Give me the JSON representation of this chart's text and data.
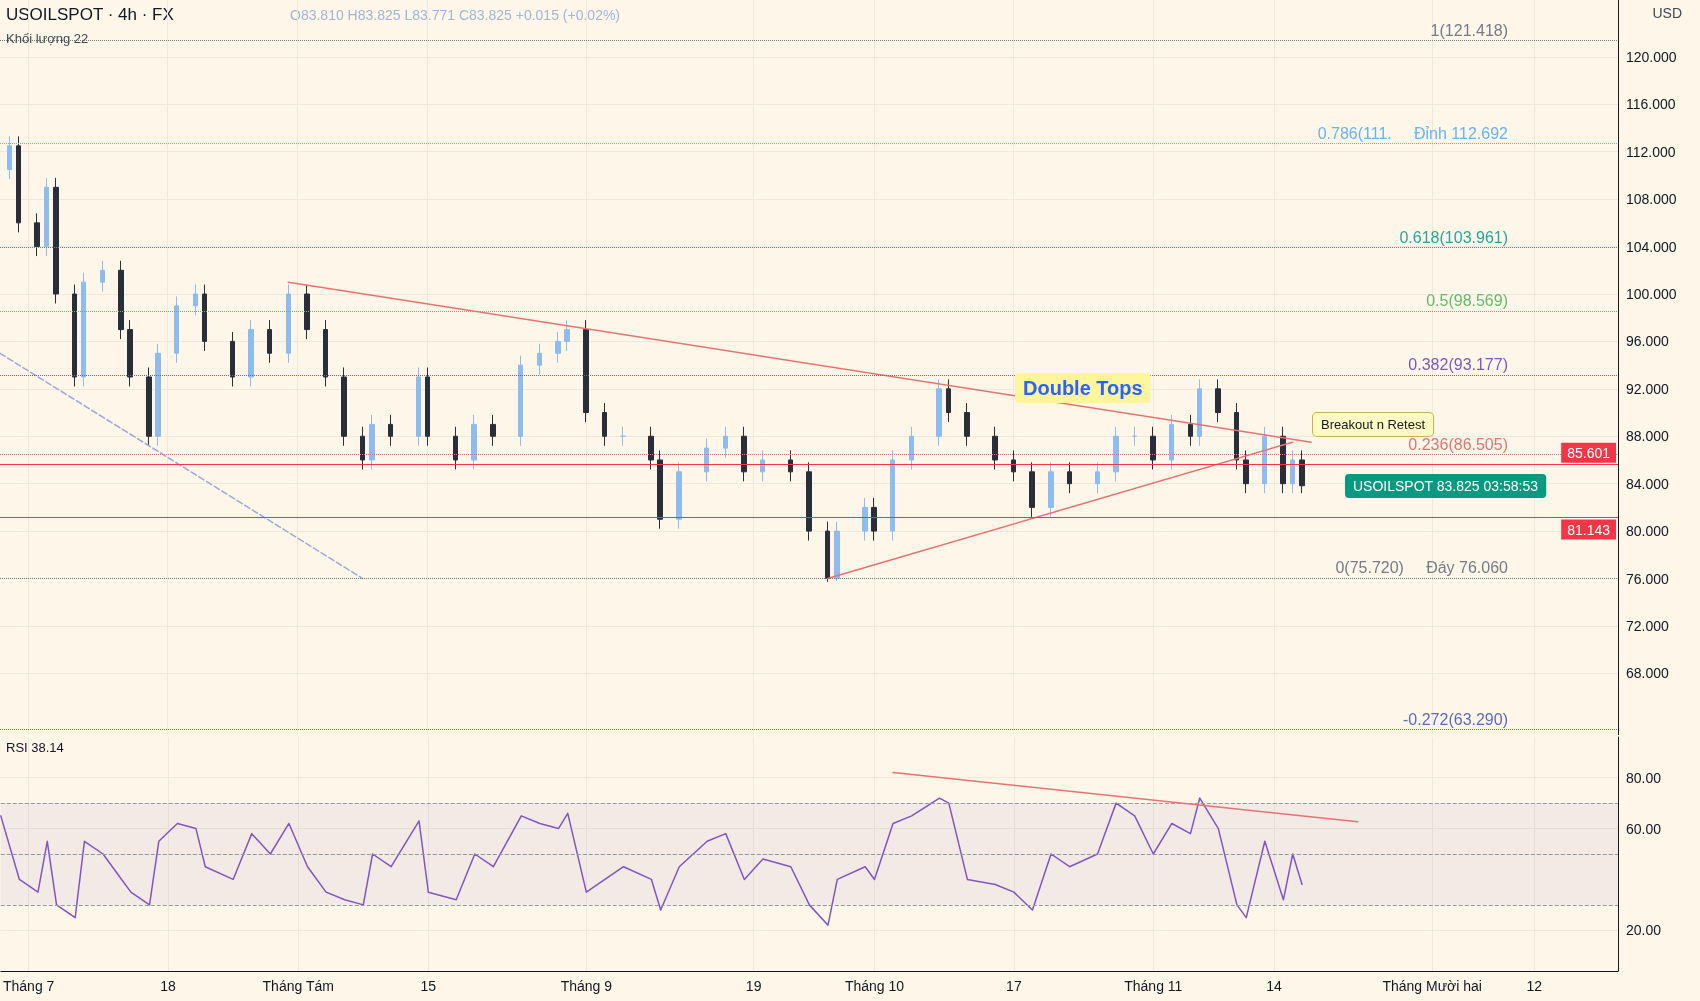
{
  "chart_data": [
    {
      "type": "candlestick",
      "title": "USOILSPOT · 4h · FX",
      "subtitle": "O83.810 H83.825 L83.771 C83.825 +0.015 (+0.02%)",
      "ylabel": "USD",
      "x": [
        "--07-01",
        "--07-02",
        "--07-04",
        "--07-05",
        "--07-06",
        "--07-08",
        "--07-09",
        "--07-11",
        "--07-13",
        "--07-14",
        "--07-16",
        "--07-17",
        "--07-19",
        "--07-21",
        "--07-22",
        "--07-25",
        "--07-27",
        "--07-29",
        "--07-31",
        "--08-02",
        "--08-04",
        "--08-06",
        "--08-08",
        "--08-09",
        "--08-11",
        "--08-14",
        "--08-15",
        "--08-18",
        "--08-20",
        "--08-22",
        "--08-25",
        "--08-27",
        "--08-29",
        "--08-30",
        "--09-01",
        "--09-03",
        "--09-05",
        "--09-08",
        "--09-09",
        "--09-11",
        "--09-14",
        "--09-16",
        "--09-18",
        "--09-20",
        "--09-23",
        "--09-25",
        "--09-27",
        "--09-28",
        "--10-01",
        "--10-02",
        "--10-04",
        "--10-06",
        "--10-09",
        "--10-10",
        "--10-12",
        "--10-15",
        "--10-17",
        "--10-19",
        "--10-21",
        "--10-23",
        "--10-26",
        "--10-28",
        "--10-30",
        "--11-01",
        "--11-03",
        "--11-05",
        "--11-06",
        "--11-08",
        "--11-10",
        "--11-11",
        "--11-13",
        "--11-15",
        "--11-16",
        "--11-17"
      ],
      "series": [
        {
          "colors": [
            "#8fbcf0",
            "#2a2e39",
            "#2a2e39",
            "#8fbcf0",
            "#2a2e39",
            "#2a2e39",
            "#8fbcf0",
            "#8fbcf0",
            "#2a2e39",
            "#2a2e39",
            "#2a2e39",
            "#8fbcf0",
            "#8fbcf0",
            "#8fbcf0",
            "#2a2e39",
            "#2a2e39",
            "#8fbcf0",
            "#2a2e39",
            "#8fbcf0",
            "#2a2e39",
            "#2a2e39",
            "#2a2e39",
            "#2a2e39",
            "#8fbcf0",
            "#2a2e39",
            "#8fbcf0",
            "#2a2e39",
            "#2a2e39",
            "#8fbcf0",
            "#2a2e39",
            "#8fbcf0",
            "#8fbcf0",
            "#8fbcf0",
            "#8fbcf0",
            "#2a2e39",
            "#2a2e39",
            "#8fbcf0",
            "#2a2e39",
            "#2a2e39",
            "#8fbcf0",
            "#8fbcf0",
            "#8fbcf0",
            "#2a2e39",
            "#8fbcf0",
            "#2a2e39",
            "#2a2e39",
            "#2a2e39",
            "#8fbcf0",
            "#8fbcf0",
            "#2a2e39",
            "#8fbcf0",
            "#8fbcf0",
            "#8fbcf0",
            "#2a2e39",
            "#2a2e39",
            "#2a2e39",
            "#2a2e39",
            "#2a2e39",
            "#8fbcf0",
            "#2a2e39",
            "#8fbcf0",
            "#8fbcf0",
            "#8fbcf0",
            "#2a2e39",
            "#8fbcf0",
            "#2a2e39",
            "#8fbcf0",
            "#2a2e39",
            "#2a2e39",
            "#2a2e39",
            "#8fbcf0",
            "#2a2e39",
            "#8fbcf0",
            "#2a2e39"
          ],
          "ohlc": [
            [
              110.5,
              113.3,
              109.7,
              112.5
            ],
            [
              112.5,
              113.3,
              105.2,
              106
            ],
            [
              106,
              106.8,
              103.2,
              104
            ],
            [
              104,
              109.8,
              103.2,
              109
            ],
            [
              109,
              109.8,
              99.2,
              100
            ],
            [
              100,
              100.8,
              92.2,
              93
            ],
            [
              93,
              101.8,
              92.2,
              101
            ],
            [
              101,
              102.8,
              100.2,
              102
            ],
            [
              102,
              102.8,
              96.2,
              97
            ],
            [
              97,
              97.8,
              92.2,
              93
            ],
            [
              93,
              93.8,
              87.2,
              88
            ],
            [
              88,
              95.8,
              87.2,
              95
            ],
            [
              95,
              99.8,
              94.2,
              99
            ],
            [
              99,
              100.8,
              98.2,
              100
            ],
            [
              100,
              100.8,
              95.2,
              96
            ],
            [
              96,
              96.8,
              92.2,
              93
            ],
            [
              93,
              97.8,
              92.2,
              97
            ],
            [
              97,
              97.8,
              94.2,
              95
            ],
            [
              95,
              100.8,
              94.2,
              100
            ],
            [
              100,
              100.8,
              96.2,
              97
            ],
            [
              97,
              97.8,
              92.2,
              93
            ],
            [
              93,
              93.8,
              87.2,
              88
            ],
            [
              88,
              88.8,
              85.2,
              86
            ],
            [
              86,
              89.8,
              85.2,
              89
            ],
            [
              89,
              89.8,
              87.2,
              88
            ],
            [
              88,
              93.8,
              87.2,
              93
            ],
            [
              93,
              93.8,
              87.2,
              88
            ],
            [
              88,
              88.8,
              85.2,
              86
            ],
            [
              86,
              89.8,
              85.2,
              89
            ],
            [
              89,
              89.8,
              87.2,
              88
            ],
            [
              88,
              94.8,
              87.2,
              94
            ],
            [
              94,
              95.8,
              93.2,
              95
            ],
            [
              95,
              96.8,
              94.2,
              96
            ],
            [
              96,
              97.8,
              95.2,
              97
            ],
            [
              97,
              97.8,
              89.2,
              90
            ],
            [
              90,
              90.8,
              87.2,
              88
            ],
            [
              88,
              88.8,
              87.2,
              88
            ],
            [
              88,
              88.8,
              85.2,
              86
            ],
            [
              86,
              86.8,
              80.2,
              81
            ],
            [
              81,
              85.8,
              80.2,
              85
            ],
            [
              85,
              87.8,
              84.2,
              87
            ],
            [
              87,
              88.8,
              86.2,
              88
            ],
            [
              88,
              88.8,
              84.2,
              85
            ],
            [
              85,
              86.8,
              84.2,
              86
            ],
            [
              86,
              86.8,
              84.2,
              85
            ],
            [
              85,
              85.8,
              79.2,
              80
            ],
            [
              80,
              80.8,
              75.72,
              76
            ],
            [
              76,
              80.8,
              75.8,
              80
            ],
            [
              80,
              82.8,
              79.2,
              82
            ],
            [
              82,
              82.8,
              79.2,
              80
            ],
            [
              80,
              86.8,
              79.2,
              86
            ],
            [
              86,
              88.8,
              85.2,
              88
            ],
            [
              88,
              92.8,
              87.2,
              92
            ],
            [
              92,
              92.8,
              89.2,
              90
            ],
            [
              90,
              90.8,
              87.2,
              88
            ],
            [
              88,
              88.8,
              85.2,
              86
            ],
            [
              86,
              86.8,
              84.2,
              85
            ],
            [
              85,
              85.8,
              81.2,
              82
            ],
            [
              82,
              85.8,
              81.2,
              85
            ],
            [
              85,
              85.8,
              83.2,
              84
            ],
            [
              84,
              85.8,
              83.2,
              85
            ],
            [
              85,
              88.8,
              84.2,
              88
            ],
            [
              88,
              88.8,
              87.2,
              88
            ],
            [
              88,
              88.8,
              85.2,
              86
            ],
            [
              86,
              89.8,
              85.2,
              89
            ],
            [
              89,
              89.8,
              87.2,
              88
            ],
            [
              88,
              92.8,
              87.2,
              92
            ],
            [
              92,
              92.8,
              89.2,
              90
            ],
            [
              90,
              90.8,
              85.2,
              86
            ],
            [
              86,
              86.8,
              83.2,
              84
            ],
            [
              84,
              88.8,
              83.2,
              88
            ],
            [
              88,
              88.8,
              83.2,
              84
            ],
            [
              84,
              86.8,
              83.2,
              86
            ],
            [
              86,
              86.8,
              83.2,
              83.825
            ]
          ]
        },
        {
          "type": "line",
          "color": "#e57373",
          "line_style": "solid",
          "x": [
            "--07-31",
            "--11-18"
          ],
          "values": [
            101,
            87.5
          ]
        },
        {
          "type": "line",
          "color": "#e57373",
          "line_style": "solid",
          "x": [
            "--09-27",
            "--11-16"
          ],
          "values": [
            76,
            87.5
          ]
        },
        {
          "type": "line",
          "color": "#9fa8da",
          "line_style": "dashed",
          "x": [
            "--06-30",
            "--08-08"
          ],
          "values": [
            95,
            76
          ]
        }
      ],
      "xlim": [
        "--06-30",
        "--12-21"
      ],
      "xticks": [
        {
          "value": "--07-03",
          "label": "Tháng 7"
        },
        {
          "value": "--07-18",
          "label": "18"
        },
        {
          "value": "--08-01",
          "label": "Tháng Tám"
        },
        {
          "value": "--08-15",
          "label": "15"
        },
        {
          "value": "--09-01",
          "label": "Tháng 9"
        },
        {
          "value": "--09-19",
          "label": "19"
        },
        {
          "value": "--10-02",
          "label": "Tháng 10"
        },
        {
          "value": "--10-17",
          "label": "17"
        },
        {
          "value": "--11-01",
          "label": "Tháng 11"
        },
        {
          "value": "--11-14",
          "label": "14"
        },
        {
          "value": "--12-01",
          "label": "Tháng Mười hai"
        },
        {
          "value": "--12-12",
          "label": "12"
        }
      ],
      "ylim": [
        62.8,
        124.8
      ],
      "yticks": [
        {
          "value": 68,
          "label": "68.000"
        },
        {
          "value": 72,
          "label": "72.000"
        },
        {
          "value": 76,
          "label": "76.000"
        },
        {
          "value": 80,
          "label": "80.000"
        },
        {
          "value": 84,
          "label": "84.000"
        },
        {
          "value": 88,
          "label": "88.000"
        },
        {
          "value": 92,
          "label": "92.000"
        },
        {
          "value": 96,
          "label": "96.000"
        },
        {
          "value": 100,
          "label": "100.000"
        },
        {
          "value": 104,
          "label": "104.000"
        },
        {
          "value": 108,
          "label": "108.000"
        },
        {
          "value": 112,
          "label": "112.000"
        },
        {
          "value": 116,
          "label": "116.000"
        },
        {
          "value": 120,
          "label": "120.000"
        }
      ],
      "tick_labels": "y",
      "grid": true,
      "ref_lines": [
        {
          "axis": "y",
          "value": 121.418,
          "label": "1(121.418)",
          "color": "#787b86",
          "line_style": "dotted"
        },
        {
          "axis": "y",
          "value": 112.692,
          "label": "0.786(111.     Đỉnh 112.692",
          "color": "#64b5f6",
          "line_style": "dotted"
        },
        {
          "axis": "y",
          "value": 103.961,
          "label": "0.618(103.961)",
          "color": "#26a69a",
          "line_style": "dotted"
        },
        {
          "axis": "y",
          "value": 98.569,
          "label": "0.5(98.569)",
          "color": "#66bb6a",
          "line_style": "dotted"
        },
        {
          "axis": "y",
          "value": 93.177,
          "label": "0.382(93.177)",
          "color": "#7e57c2",
          "line_style": "dotted"
        },
        {
          "axis": "y",
          "value": 86.505,
          "label": "0.236(86.505)",
          "color": "#e57373",
          "line_style": "dotted"
        },
        {
          "axis": "y",
          "value": 85.601,
          "label": "85.601",
          "color": "#f23645",
          "line_style": "solid"
        },
        {
          "axis": "y",
          "value": 81.143,
          "label": "81.143",
          "color": "#f23645",
          "line_style": "solid"
        },
        {
          "axis": "y",
          "value": 76.06,
          "label": "0(75.720)     Đáy 76.060",
          "color": "#787b86",
          "line_style": "dotted"
        },
        {
          "axis": "y",
          "value": 63.29,
          "label": "-0.272(63.290)",
          "color": "#5c6bc0",
          "line_style": "dotted"
        }
      ],
      "annotations": [
        "Khối lượng 22",
        "Double Tops",
        "Breakout n Retest",
        "USOILSPOT 83.825 03:58:53"
      ]
    },
    {
      "type": "line",
      "title": "RSI 38.14",
      "x": [
        "--06-30",
        "--07-02",
        "--07-04",
        "--07-05",
        "--07-06",
        "--07-08",
        "--07-09",
        "--07-11",
        "--07-13",
        "--07-14",
        "--07-16",
        "--07-17",
        "--07-19",
        "--07-21",
        "--07-22",
        "--07-25",
        "--07-27",
        "--07-29",
        "--07-31",
        "--08-02",
        "--08-04",
        "--08-06",
        "--08-08",
        "--08-09",
        "--08-11",
        "--08-14",
        "--08-15",
        "--08-18",
        "--08-20",
        "--08-22",
        "--08-25",
        "--08-27",
        "--08-29",
        "--08-30",
        "--09-01",
        "--09-03",
        "--09-05",
        "--09-08",
        "--09-09",
        "--09-11",
        "--09-14",
        "--09-16",
        "--09-18",
        "--09-20",
        "--09-23",
        "--09-25",
        "--09-27",
        "--09-28",
        "--10-01",
        "--10-02",
        "--10-04",
        "--10-06",
        "--10-09",
        "--10-10",
        "--10-12",
        "--10-15",
        "--10-17",
        "--10-19",
        "--10-21",
        "--10-23",
        "--10-26",
        "--10-28",
        "--10-30",
        "--11-01",
        "--11-03",
        "--11-05",
        "--11-06",
        "--11-08",
        "--11-10",
        "--11-11",
        "--11-13",
        "--11-15",
        "--11-16",
        "--11-17"
      ],
      "series": [
        {
          "color": "#7e57c2",
          "line_style": "solid",
          "values": [
            65,
            40,
            35,
            55,
            30,
            25,
            55,
            50,
            40,
            35,
            30,
            55,
            62,
            60,
            45,
            40,
            58,
            50,
            62,
            45,
            35,
            32,
            30,
            50,
            45,
            63,
            35,
            32,
            50,
            45,
            65,
            62,
            60,
            66,
            35,
            40,
            45,
            40,
            28,
            45,
            55,
            58,
            40,
            48,
            45,
            30,
            22,
            40,
            45,
            40,
            62,
            65,
            72,
            70,
            40,
            38,
            35,
            28,
            50,
            45,
            50,
            70,
            65,
            50,
            62,
            58,
            72,
            60,
            30,
            25,
            55,
            32,
            50,
            38.14
          ]
        },
        {
          "type": "line",
          "color": "#e57373",
          "line_style": "solid",
          "x": [
            "--10-04",
            "--11-23"
          ],
          "values": [
            82,
            62.7
          ]
        }
      ],
      "xlim": [
        "--06-30",
        "--12-21"
      ],
      "xticks": [
        {
          "value": "--07-03",
          "label": "Tháng 7"
        },
        {
          "value": "--07-18",
          "label": "18"
        },
        {
          "value": "--08-01",
          "label": "Tháng Tám"
        },
        {
          "value": "--08-15",
          "label": "15"
        },
        {
          "value": "--09-01",
          "label": "Tháng 9"
        },
        {
          "value": "--09-19",
          "label": "19"
        },
        {
          "value": "--10-02",
          "label": "Tháng 10"
        },
        {
          "value": "--10-17",
          "label": "17"
        },
        {
          "value": "--11-01",
          "label": "Tháng 11"
        },
        {
          "value": "--11-14",
          "label": "14"
        },
        {
          "value": "--12-01",
          "label": "Tháng Mười hai"
        },
        {
          "value": "--12-12",
          "label": "12"
        }
      ],
      "ylim": [
        4,
        96
      ],
      "yticks": [
        {
          "value": 20,
          "label": "20.00"
        },
        {
          "value": 60,
          "label": "60.00"
        },
        {
          "value": 80,
          "label": "80.00"
        }
      ],
      "grid": true,
      "marker": "none",
      "ref_lines": [
        {
          "axis": "y",
          "value": 70,
          "color": "#9598a1",
          "line_style": "dashed"
        },
        {
          "axis": "y",
          "value": 50,
          "color": "#9598a1",
          "line_style": "dashed"
        },
        {
          "axis": "y",
          "value": 30,
          "color": "#9598a1",
          "line_style": "dashed"
        }
      ],
      "bands": [
        {
          "axis": "y",
          "from": 30,
          "to": 70,
          "color": "#7e57c2"
        }
      ]
    }
  ]
}
